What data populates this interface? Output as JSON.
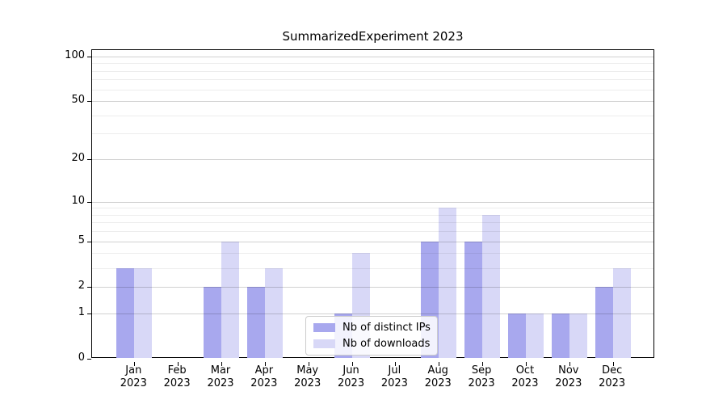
{
  "title": "SummarizedExperiment 2023",
  "colors": {
    "ips_bar": "#a8a8ee",
    "downloads_bar": "#d8d8f7",
    "grid_major": "rgba(0,0,0,0.18)",
    "grid_minor": "rgba(0,0,0,0.07)",
    "axis": "#000000",
    "legend_border": "#cccccc"
  },
  "legend": {
    "position": "lower center"
  },
  "chart_data": {
    "type": "bar",
    "title": "SummarizedExperiment 2023",
    "categories": [
      {
        "month": "Jan",
        "year": "2023"
      },
      {
        "month": "Feb",
        "year": "2023"
      },
      {
        "month": "Mar",
        "year": "2023"
      },
      {
        "month": "Apr",
        "year": "2023"
      },
      {
        "month": "May",
        "year": "2023"
      },
      {
        "month": "Jun",
        "year": "2023"
      },
      {
        "month": "Jul",
        "year": "2023"
      },
      {
        "month": "Aug",
        "year": "2023"
      },
      {
        "month": "Sep",
        "year": "2023"
      },
      {
        "month": "Oct",
        "year": "2023"
      },
      {
        "month": "Nov",
        "year": "2023"
      },
      {
        "month": "Dec",
        "year": "2023"
      }
    ],
    "series": [
      {
        "name": "Nb of distinct IPs",
        "color": "#a8a8ee",
        "values": [
          3,
          0,
          2,
          2,
          0,
          1,
          0,
          5,
          5,
          1,
          1,
          2
        ]
      },
      {
        "name": "Nb of downloads",
        "color": "#d8d8f7",
        "values": [
          3,
          0,
          5,
          3,
          0,
          4,
          0,
          9,
          8,
          1,
          1,
          3
        ]
      }
    ],
    "xlabel": "",
    "ylabel": "",
    "yscale": "log1p",
    "yticks": [
      0,
      1,
      2,
      5,
      10,
      20,
      50,
      100
    ],
    "yminorticks": [
      3,
      4,
      6,
      7,
      8,
      9,
      30,
      40,
      60,
      70,
      80,
      90
    ],
    "ylim": [
      0,
      110
    ],
    "grid": "horizontal, drawn above bars",
    "legend_position": "lower center"
  }
}
